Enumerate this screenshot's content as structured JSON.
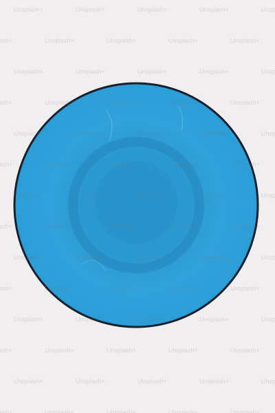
{
  "image": {
    "background_color": "#f1eeef",
    "watermark_text": "Unsplash+",
    "subject": {
      "shape": "blue-circle",
      "fill_color": "#2e9fd8",
      "outline_color": "#1a1f2c"
    }
  }
}
